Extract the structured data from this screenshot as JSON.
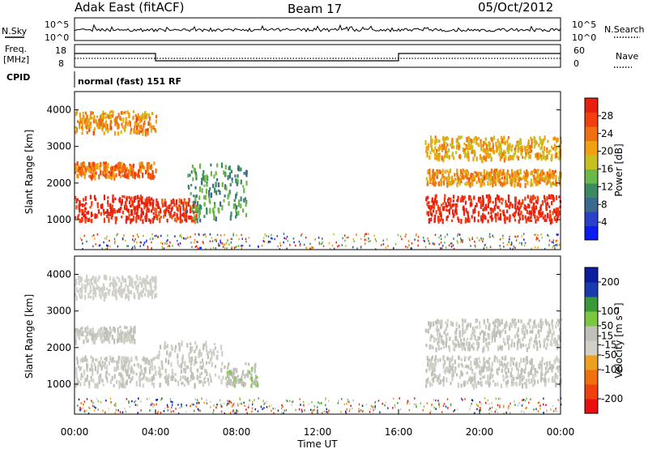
{
  "header": {
    "station": "Adak East (fitACF)",
    "beam": "Beam 17",
    "date": "05/Oct/2012"
  },
  "status_panels": {
    "nsky_label": "N.Sky",
    "nsky_ticks": [
      "10^5",
      "10^0"
    ],
    "nsearch_label": "N.Search",
    "freq_label_1": "Freq.",
    "freq_label_2": "[MHz]",
    "freq_ticks": [
      "18",
      "8"
    ],
    "nave_ticks": [
      "60",
      "0"
    ],
    "nave_label": "Nave",
    "cpid_label": "CPID",
    "cpid_value": "normal (fast) 151 RF"
  },
  "colors": {
    "power_scale": [
      "#0a1cf0",
      "#2a40c8",
      "#3a6a90",
      "#3c8a60",
      "#6ab84a",
      "#c8c020",
      "#f0a010",
      "#f07010",
      "#f04010",
      "#e82010"
    ],
    "velocity_scale": [
      "#e81010",
      "#f04010",
      "#f07010",
      "#f0a020",
      "#d0d0c8",
      "#c0c0b8",
      "#7ac840",
      "#3a9a3a",
      "#1a3ab0",
      "#0a1ca0"
    ],
    "ground_scatter": "#b8b8b0"
  },
  "chart_data": [
    {
      "type": "heatmap",
      "name": "power",
      "ylabel": "Slant Range [km]",
      "xlabel": "Time UT",
      "x_ticks": [
        "00:00",
        "04:00",
        "08:00",
        "12:00",
        "16:00",
        "20:00",
        "00:00"
      ],
      "y_ticks": [
        1000,
        2000,
        3000,
        4000
      ],
      "xlim_hours": [
        0,
        24
      ],
      "ylim_km": [
        180,
        4500
      ],
      "colorbar_label": "Power [dB]",
      "colorbar_ticks": [
        4,
        8,
        12,
        16,
        20,
        24,
        28
      ],
      "colorbar_range": [
        0,
        32
      ],
      "echo_bands": [
        {
          "t": [
            0,
            4
          ],
          "range_km": [
            1000,
            1700
          ],
          "level": 30
        },
        {
          "t": [
            4,
            6
          ],
          "range_km": [
            1000,
            1600
          ],
          "level": 28
        },
        {
          "t": [
            5.5,
            8.5
          ],
          "range_km": [
            1000,
            2600
          ],
          "level": 12
        },
        {
          "t": [
            17.3,
            24
          ],
          "range_km": [
            1000,
            1700
          ],
          "level": 30
        },
        {
          "t": [
            0,
            4
          ],
          "range_km": [
            2200,
            2600
          ],
          "level": 24
        },
        {
          "t": [
            17.3,
            24
          ],
          "range_km": [
            2000,
            2400
          ],
          "level": 22
        },
        {
          "t": [
            0,
            4
          ],
          "range_km": [
            3400,
            4000
          ],
          "level": 22
        },
        {
          "t": [
            17.3,
            24
          ],
          "range_km": [
            2700,
            3300
          ],
          "level": 20
        }
      ]
    },
    {
      "type": "heatmap",
      "name": "velocity",
      "ylabel": "Slant Range [km]",
      "xlabel": "Time UT",
      "x_ticks": [
        "00:00",
        "04:00",
        "08:00",
        "12:00",
        "16:00",
        "20:00",
        "00:00"
      ],
      "y_ticks": [
        1000,
        2000,
        3000,
        4000
      ],
      "xlim_hours": [
        0,
        24
      ],
      "ylim_km": [
        180,
        4500
      ],
      "colorbar_label": "Velocity [m s⁻¹]",
      "colorbar_ticks": [
        -200,
        -100,
        -50,
        -15,
        15,
        50,
        100,
        200
      ],
      "colorbar_range": [
        -250,
        250
      ],
      "echo_bands": [
        {
          "t": [
            0,
            4
          ],
          "range_km": [
            1000,
            1800
          ],
          "level": 0
        },
        {
          "t": [
            4,
            7.5
          ],
          "range_km": [
            1000,
            2200
          ],
          "level": 0
        },
        {
          "t": [
            7.5,
            9
          ],
          "range_km": [
            1000,
            1600
          ],
          "level": 40
        },
        {
          "t": [
            17.3,
            24
          ],
          "range_km": [
            1000,
            1800
          ],
          "level": 0
        },
        {
          "t": [
            17.3,
            24
          ],
          "range_km": [
            2000,
            2800
          ],
          "level": 0
        },
        {
          "t": [
            0,
            3
          ],
          "range_km": [
            2200,
            2600
          ],
          "level": 0
        },
        {
          "t": [
            0,
            4
          ],
          "range_km": [
            3400,
            4000
          ],
          "level": -30
        }
      ]
    }
  ]
}
